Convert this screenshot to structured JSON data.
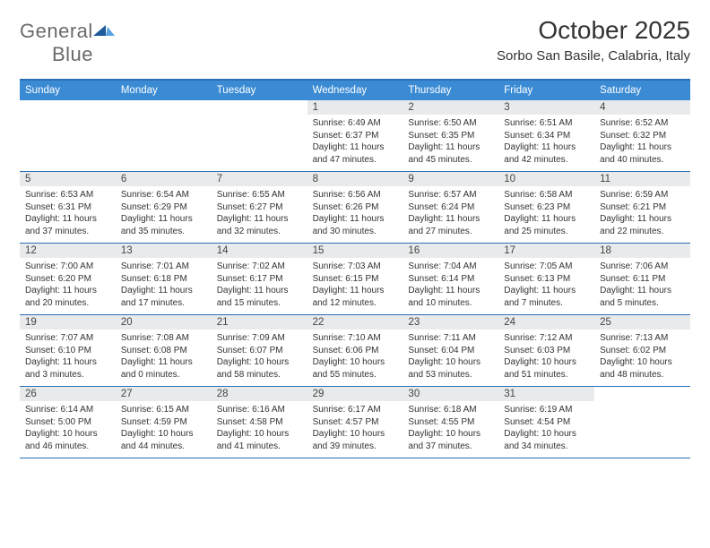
{
  "logo": {
    "word1": "General",
    "word2": "Blue"
  },
  "title": "October 2025",
  "location": "Sorbo San Basile, Calabria, Italy",
  "colors": {
    "header_bg": "#3b8bd4",
    "header_border": "#2a6fb5",
    "daynum_bg": "#e9eaeb",
    "text": "#333333",
    "logo_gray": "#6a6a6a",
    "logo_blue_dark": "#1f5a9a",
    "logo_blue_light": "#5aa3e0",
    "white": "#ffffff"
  },
  "weekdays": [
    "Sunday",
    "Monday",
    "Tuesday",
    "Wednesday",
    "Thursday",
    "Friday",
    "Saturday"
  ],
  "weeks": [
    [
      {
        "n": "",
        "sr": "",
        "ss": "",
        "dl": ""
      },
      {
        "n": "",
        "sr": "",
        "ss": "",
        "dl": ""
      },
      {
        "n": "",
        "sr": "",
        "ss": "",
        "dl": ""
      },
      {
        "n": "1",
        "sr": "6:49 AM",
        "ss": "6:37 PM",
        "dl": "11 hours and 47 minutes."
      },
      {
        "n": "2",
        "sr": "6:50 AM",
        "ss": "6:35 PM",
        "dl": "11 hours and 45 minutes."
      },
      {
        "n": "3",
        "sr": "6:51 AM",
        "ss": "6:34 PM",
        "dl": "11 hours and 42 minutes."
      },
      {
        "n": "4",
        "sr": "6:52 AM",
        "ss": "6:32 PM",
        "dl": "11 hours and 40 minutes."
      }
    ],
    [
      {
        "n": "5",
        "sr": "6:53 AM",
        "ss": "6:31 PM",
        "dl": "11 hours and 37 minutes."
      },
      {
        "n": "6",
        "sr": "6:54 AM",
        "ss": "6:29 PM",
        "dl": "11 hours and 35 minutes."
      },
      {
        "n": "7",
        "sr": "6:55 AM",
        "ss": "6:27 PM",
        "dl": "11 hours and 32 minutes."
      },
      {
        "n": "8",
        "sr": "6:56 AM",
        "ss": "6:26 PM",
        "dl": "11 hours and 30 minutes."
      },
      {
        "n": "9",
        "sr": "6:57 AM",
        "ss": "6:24 PM",
        "dl": "11 hours and 27 minutes."
      },
      {
        "n": "10",
        "sr": "6:58 AM",
        "ss": "6:23 PM",
        "dl": "11 hours and 25 minutes."
      },
      {
        "n": "11",
        "sr": "6:59 AM",
        "ss": "6:21 PM",
        "dl": "11 hours and 22 minutes."
      }
    ],
    [
      {
        "n": "12",
        "sr": "7:00 AM",
        "ss": "6:20 PM",
        "dl": "11 hours and 20 minutes."
      },
      {
        "n": "13",
        "sr": "7:01 AM",
        "ss": "6:18 PM",
        "dl": "11 hours and 17 minutes."
      },
      {
        "n": "14",
        "sr": "7:02 AM",
        "ss": "6:17 PM",
        "dl": "11 hours and 15 minutes."
      },
      {
        "n": "15",
        "sr": "7:03 AM",
        "ss": "6:15 PM",
        "dl": "11 hours and 12 minutes."
      },
      {
        "n": "16",
        "sr": "7:04 AM",
        "ss": "6:14 PM",
        "dl": "11 hours and 10 minutes."
      },
      {
        "n": "17",
        "sr": "7:05 AM",
        "ss": "6:13 PM",
        "dl": "11 hours and 7 minutes."
      },
      {
        "n": "18",
        "sr": "7:06 AM",
        "ss": "6:11 PM",
        "dl": "11 hours and 5 minutes."
      }
    ],
    [
      {
        "n": "19",
        "sr": "7:07 AM",
        "ss": "6:10 PM",
        "dl": "11 hours and 3 minutes."
      },
      {
        "n": "20",
        "sr": "7:08 AM",
        "ss": "6:08 PM",
        "dl": "11 hours and 0 minutes."
      },
      {
        "n": "21",
        "sr": "7:09 AM",
        "ss": "6:07 PM",
        "dl": "10 hours and 58 minutes."
      },
      {
        "n": "22",
        "sr": "7:10 AM",
        "ss": "6:06 PM",
        "dl": "10 hours and 55 minutes."
      },
      {
        "n": "23",
        "sr": "7:11 AM",
        "ss": "6:04 PM",
        "dl": "10 hours and 53 minutes."
      },
      {
        "n": "24",
        "sr": "7:12 AM",
        "ss": "6:03 PM",
        "dl": "10 hours and 51 minutes."
      },
      {
        "n": "25",
        "sr": "7:13 AM",
        "ss": "6:02 PM",
        "dl": "10 hours and 48 minutes."
      }
    ],
    [
      {
        "n": "26",
        "sr": "6:14 AM",
        "ss": "5:00 PM",
        "dl": "10 hours and 46 minutes."
      },
      {
        "n": "27",
        "sr": "6:15 AM",
        "ss": "4:59 PM",
        "dl": "10 hours and 44 minutes."
      },
      {
        "n": "28",
        "sr": "6:16 AM",
        "ss": "4:58 PM",
        "dl": "10 hours and 41 minutes."
      },
      {
        "n": "29",
        "sr": "6:17 AM",
        "ss": "4:57 PM",
        "dl": "10 hours and 39 minutes."
      },
      {
        "n": "30",
        "sr": "6:18 AM",
        "ss": "4:55 PM",
        "dl": "10 hours and 37 minutes."
      },
      {
        "n": "31",
        "sr": "6:19 AM",
        "ss": "4:54 PM",
        "dl": "10 hours and 34 minutes."
      },
      {
        "n": "",
        "sr": "",
        "ss": "",
        "dl": ""
      }
    ]
  ],
  "labels": {
    "sunrise": "Sunrise: ",
    "sunset": "Sunset: ",
    "daylight": "Daylight: "
  }
}
